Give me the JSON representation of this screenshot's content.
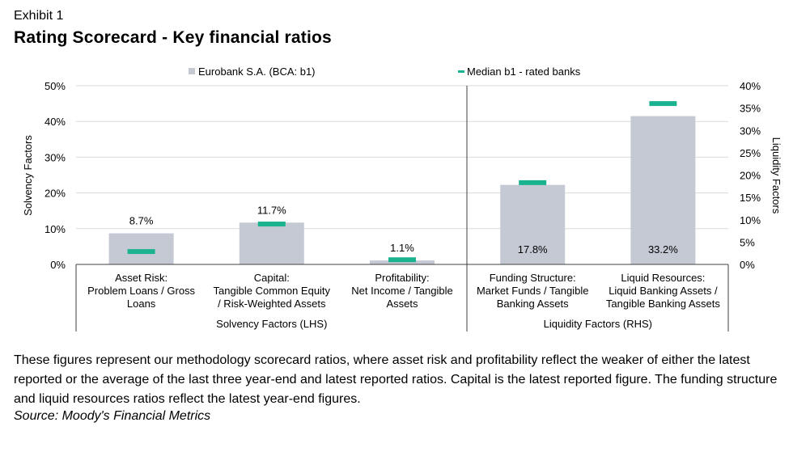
{
  "header": {
    "exhibit": "Exhibit 1",
    "title": "Rating Scorecard - Key financial ratios"
  },
  "chart_data": {
    "type": "bar",
    "title": "Rating Scorecard - Key financial ratios",
    "legend": {
      "bar_label": "Eurobank S.A. (BCA: b1)",
      "marker_label": "Median b1 - rated banks",
      "placement": "top"
    },
    "left_axis": {
      "label": "Solvency Factors",
      "ylim": [
        0,
        50
      ],
      "ticks": [
        0,
        10,
        20,
        30,
        40,
        50
      ],
      "tick_labels": [
        "0%",
        "10%",
        "20%",
        "30%",
        "40%",
        "50%"
      ]
    },
    "right_axis": {
      "label": "Liquidity Factors",
      "ylim": [
        0,
        40
      ],
      "ticks": [
        0,
        5,
        10,
        15,
        20,
        25,
        30,
        35,
        40
      ],
      "tick_labels": [
        "0%",
        "5%",
        "10%",
        "15%",
        "20%",
        "25%",
        "30%",
        "35%",
        "40%"
      ]
    },
    "grid": true,
    "categories": [
      {
        "lines": [
          "Asset Risk:",
          "Problem Loans / Gross",
          "Loans"
        ],
        "axis": "left",
        "value": 8.7,
        "median": 3.6,
        "label": "8.7%",
        "label_position": "above"
      },
      {
        "lines": [
          "Capital:",
          "Tangible Common Equity",
          "/ Risk-Weighted Assets"
        ],
        "axis": "left",
        "value": 11.7,
        "median": 11.3,
        "label": "11.7%",
        "label_position": "above"
      },
      {
        "lines": [
          "Profitability:",
          "Net Income / Tangible",
          "Assets"
        ],
        "axis": "left",
        "value": 1.1,
        "median": 1.3,
        "label": "1.1%",
        "label_position": "above"
      },
      {
        "lines": [
          "Funding Structure:",
          "Market Funds / Tangible",
          "Banking Assets"
        ],
        "axis": "right",
        "value": 17.8,
        "median": 18.3,
        "label": "17.8%",
        "label_position": "inside"
      },
      {
        "lines": [
          "Liquid Resources:",
          "Liquid Banking Assets /",
          "Tangible Banking Assets"
        ],
        "axis": "right",
        "value": 33.2,
        "median": 36.0,
        "label": "33.2%",
        "label_position": "inside"
      }
    ],
    "groups": [
      {
        "label": "Solvency Factors (LHS)",
        "span": [
          0,
          2
        ]
      },
      {
        "label": "Liquidity Factors (RHS)",
        "span": [
          3,
          4
        ]
      }
    ],
    "colors": {
      "bar": "#c5c9d4",
      "median": "#1bb38f",
      "grid": "#d9d9d9",
      "axis": "#404040"
    }
  },
  "footer": {
    "note": "These figures represent our methodology scorecard ratios, where asset risk and profitability reflect the weaker of either the latest reported or the average of the last three year-end and latest reported ratios. Capital is the latest reported figure. The funding structure and liquid resources ratios reflect the latest year-end figures.",
    "source": "Source: Moody's Financial Metrics"
  }
}
